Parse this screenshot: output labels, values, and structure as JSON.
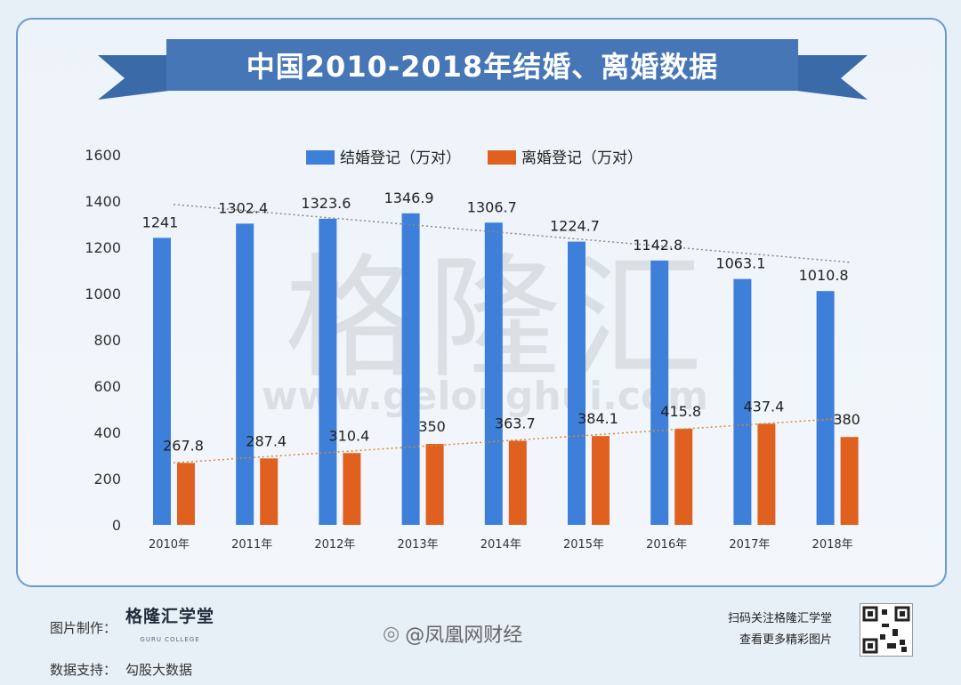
{
  "title": "中国2010-2018年结婚、离婚数据",
  "watermark": {
    "brand": "格隆汇",
    "url": "www.gelonghui.com"
  },
  "chart_data": {
    "type": "bar",
    "categories": [
      "2010年",
      "2011年",
      "2012年",
      "2013年",
      "2014年",
      "2015年",
      "2016年",
      "2017年",
      "2018年"
    ],
    "series": [
      {
        "name": "结婚登记（万对）",
        "color": "#3d7fd9",
        "values": [
          1241,
          1302.4,
          1323.6,
          1346.9,
          1306.7,
          1224.7,
          1142.8,
          1063.1,
          1010.8
        ],
        "labels": [
          "1241",
          "1302.4",
          "1323.6",
          "1346.9",
          "1306.7",
          "1224.7",
          "1142.8",
          "1063.1",
          "1010.8"
        ]
      },
      {
        "name": "离婚登记（万对）",
        "color": "#e0611f",
        "values": [
          267.8,
          287.4,
          310.4,
          350,
          363.7,
          384.1,
          415.8,
          437.4,
          380
        ],
        "labels": [
          "267.8",
          "287.4",
          "310.4",
          "350",
          "363.7",
          "384.1",
          "415.8",
          "437.4",
          "380"
        ]
      }
    ],
    "ylim": [
      0,
      1600
    ],
    "yticks": [
      "0",
      "200",
      "400",
      "600",
      "800",
      "1000",
      "1200",
      "1400",
      "1600"
    ],
    "legend": "top",
    "trendlines": true
  },
  "footer": {
    "maker_label": "图片制作：",
    "maker_brand": "格隆汇学堂",
    "maker_sub": "GURU COLLEGE",
    "source_label": "数据支持：",
    "source_value": "勾股大数据",
    "weibo": "@凤凰网财经",
    "qr_line1": "扫码关注格隆汇学堂",
    "qr_line2": "查看更多精彩图片"
  }
}
